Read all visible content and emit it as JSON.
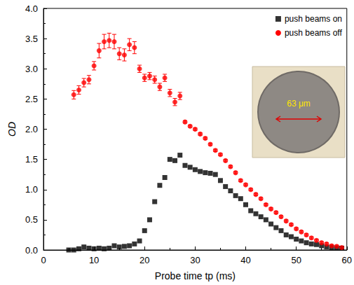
{
  "chart_data": {
    "type": "scatter",
    "x_label": "Probe time tp (ms)",
    "y_label": "OD",
    "xlim": [
      0,
      60
    ],
    "xticks": [
      0,
      10,
      20,
      30,
      40,
      50,
      60
    ],
    "ylim": [
      0,
      4
    ],
    "yticks": [
      {
        "value": 0,
        "label": "0.0"
      },
      {
        "value": 0.5,
        "label": "0.5"
      },
      {
        "value": 1,
        "label": "1.0"
      },
      {
        "value": 1.5,
        "label": "1.5"
      },
      {
        "value": 2,
        "label": "2.0"
      },
      {
        "value": 2.5,
        "label": "2.5"
      },
      {
        "value": 3,
        "label": "3.0"
      },
      {
        "value": 3.5,
        "label": "3.5"
      },
      {
        "value": 4,
        "label": "4.0"
      }
    ],
    "legend": "upper right",
    "grid": false,
    "annotations": [
      {
        "text": "63 μm"
      }
    ],
    "series": [
      {
        "name": "push beams on",
        "color": "#000000",
        "marker": "square",
        "x": [
          5,
          6,
          7,
          8,
          9,
          10,
          11,
          12,
          13,
          14,
          15,
          16,
          17,
          18,
          19,
          20,
          21,
          22,
          23,
          24,
          25,
          26,
          27,
          28,
          29,
          30,
          31,
          32,
          33,
          34,
          35,
          36,
          37,
          38,
          39,
          40,
          41,
          42,
          43,
          44,
          45,
          46,
          47,
          48,
          49,
          50,
          51,
          52,
          53,
          54,
          55,
          56,
          57,
          58,
          59
        ],
        "values": [
          0.0,
          0.0,
          0.02,
          0.05,
          0.03,
          0.02,
          0.03,
          0.02,
          0.03,
          0.07,
          0.05,
          0.06,
          0.07,
          0.1,
          0.15,
          0.32,
          0.5,
          0.8,
          1.07,
          1.2,
          1.5,
          1.48,
          1.57,
          1.4,
          1.37,
          1.33,
          1.3,
          1.28,
          1.27,
          1.25,
          1.15,
          1.05,
          0.98,
          0.9,
          0.85,
          0.75,
          0.65,
          0.6,
          0.55,
          0.5,
          0.43,
          0.37,
          0.32,
          0.25,
          0.22,
          0.18,
          0.15,
          0.12,
          0.1,
          0.09,
          0.07,
          0.05,
          0.04,
          0.03,
          0.03
        ]
      },
      {
        "name": "push beams off",
        "color": "#ff0000",
        "marker": "circle",
        "x": [
          6,
          7,
          8,
          9,
          10,
          11,
          12,
          13,
          14,
          15,
          16,
          17,
          18,
          19,
          20,
          21,
          22,
          23,
          24,
          25,
          26,
          27,
          28,
          29,
          30,
          31,
          32,
          33,
          34,
          35,
          36,
          37,
          38,
          39,
          40,
          41,
          42,
          43,
          44,
          45,
          46,
          47,
          48,
          49,
          50,
          51,
          52,
          53,
          54,
          55,
          56,
          57,
          58,
          59
        ],
        "values": [
          2.57,
          2.65,
          2.77,
          2.82,
          3.05,
          3.3,
          3.45,
          3.47,
          3.45,
          3.25,
          3.23,
          3.4,
          3.35,
          3.0,
          2.85,
          2.88,
          2.82,
          2.7,
          2.85,
          2.6,
          2.45,
          2.55,
          2.12,
          2.05,
          2.0,
          1.92,
          1.85,
          1.75,
          1.65,
          1.58,
          1.48,
          1.38,
          1.28,
          1.15,
          1.08,
          1.0,
          0.92,
          0.85,
          0.75,
          0.68,
          0.62,
          0.55,
          0.48,
          0.42,
          0.35,
          0.3,
          0.25,
          0.2,
          0.16,
          0.12,
          0.1,
          0.07,
          0.06,
          0.04
        ],
        "errors": [
          0.07,
          0.07,
          0.07,
          0.07,
          0.07,
          0.12,
          0.12,
          0.12,
          0.12,
          0.1,
          0.1,
          0.1,
          0.1,
          0.06,
          0.06,
          0.06,
          0.06,
          0.06,
          0.06,
          0.06,
          0.06,
          0.06,
          0.02,
          0.02,
          0.02,
          0.02,
          0.02,
          0.02,
          0.02,
          0.02,
          0.02,
          0.02,
          0.02,
          0.02,
          0.02,
          0.02,
          0.02,
          0.02,
          0.02,
          0.02,
          0.02,
          0.02,
          0.02,
          0.02,
          0.02,
          0.02,
          0.02,
          0.02,
          0.02,
          0.02,
          0.02,
          0.02,
          0.02,
          0.02
        ]
      }
    ]
  }
}
